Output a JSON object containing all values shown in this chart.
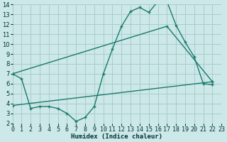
{
  "title": "",
  "xlabel": "Humidex (Indice chaleur)",
  "ylabel": "",
  "bg_color": "#cce8e8",
  "grid_color": "#aacccc",
  "line_color": "#1a7a6e",
  "xlim": [
    0,
    23
  ],
  "ylim": [
    2,
    14
  ],
  "xticks": [
    0,
    1,
    2,
    3,
    4,
    5,
    6,
    7,
    8,
    9,
    10,
    11,
    12,
    13,
    14,
    15,
    16,
    17,
    18,
    19,
    20,
    21,
    22,
    23
  ],
  "yticks": [
    2,
    3,
    4,
    5,
    6,
    7,
    8,
    9,
    10,
    11,
    12,
    13,
    14
  ],
  "line1_x": [
    0,
    1,
    2,
    3,
    4,
    5,
    6,
    7,
    8,
    9,
    10,
    11,
    12,
    13,
    14,
    15,
    16,
    17,
    18,
    19,
    20,
    21,
    22
  ],
  "line1_y": [
    7.0,
    6.5,
    3.5,
    3.7,
    3.7,
    3.5,
    3.0,
    2.2,
    2.6,
    3.7,
    7.0,
    9.5,
    11.8,
    13.3,
    13.7,
    13.2,
    14.3,
    14.3,
    11.9,
    10.2,
    8.7,
    6.0,
    5.9
  ],
  "line2_x": [
    0,
    17,
    22
  ],
  "line2_y": [
    7.0,
    11.8,
    6.2
  ],
  "line3_x": [
    0,
    22
  ],
  "line3_y": [
    3.8,
    6.2
  ]
}
